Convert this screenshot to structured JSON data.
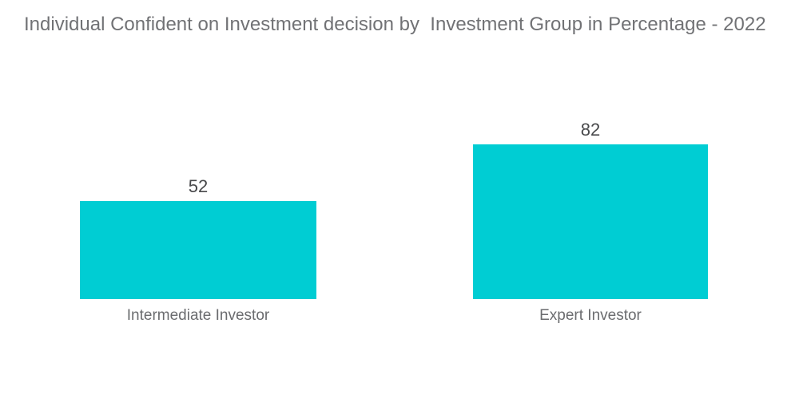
{
  "chart_data": {
    "type": "bar",
    "title": "Individual Confident on Investment decision by  Investment Group in Percentage - 2022",
    "categories": [
      "Intermediate Investor",
      "Expert Investor"
    ],
    "values": [
      52,
      82
    ],
    "xlabel": "",
    "ylabel": "",
    "ylim": [
      0,
      82
    ],
    "grid": false,
    "legend": false,
    "orientation": "vertical",
    "bar_color": "#00cdd3",
    "title_color": "#717275",
    "category_label_color": "#6b6c6f",
    "value_label_color": "#48494b",
    "background_color": "#ffffff"
  }
}
